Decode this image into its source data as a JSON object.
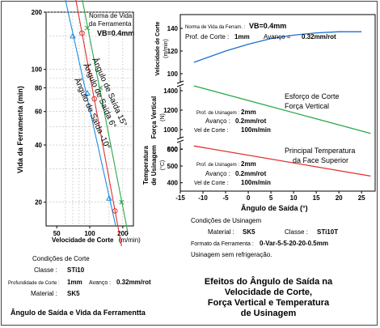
{
  "left_chart": {
    "ylabel": "Vida da Ferramenta (min)",
    "xlabel": "Velocidade de Corte",
    "xunit": "(m/min)",
    "yticks": [
      "200",
      "100",
      "80",
      "60",
      "40",
      "20"
    ],
    "xticks": [
      "50",
      "100",
      "200"
    ],
    "legend_title_1": "Norma de Vida",
    "legend_title_2": "da Ferramenta",
    "legend_vb": "VB=0.4mm",
    "cond_title": "Condições de Corte",
    "cond_class_label": "Classe :",
    "cond_class_value": "STi10",
    "cond_depth_label": "Profundidade de Corte :",
    "cond_depth_value": "1mm",
    "cond_feed_label": "Avanço :",
    "cond_feed_value": "0.32mm/rot",
    "cond_material_label": "Material :",
    "cond_material_value": "SK5",
    "caption": "Ângulo de Saída e Vida da Ferramentta"
  },
  "right_chart": {
    "xlabel": "Ângulo de Saída (°)",
    "xticks": [
      "-15",
      "-10",
      "-5",
      "0",
      "5",
      "10",
      "15",
      "20",
      "25"
    ],
    "panel1": {
      "ylabel_1": "Velocidade de Corte",
      "ylabel_2": "(m/min)",
      "yticks": [
        "140",
        "120",
        "100"
      ],
      "note_label": "Norma de Vida da Ferram. :",
      "note_vb": "VB=0.4mm",
      "depth_label": "Prof. de Corte :",
      "depth_value": "1mm",
      "feed_label": "Avanço =",
      "feed_value": "0.32mm/rot"
    },
    "panel2": {
      "ylabel_1": "Força Vertical",
      "ylabel_2": "(N)",
      "yticks": [
        "1400",
        "1200",
        "1000",
        "800"
      ],
      "series_1": "Esforço de Corte",
      "series_2": "Força Vertical",
      "depth_label": "Prof. de Usinagem :",
      "depth_value": "2mm",
      "feed_label": "Avanço :",
      "feed_value": "0.2mm/rot",
      "speed_label": "Vel de Corte :",
      "speed_value": "100m/min"
    },
    "panel3": {
      "ylabel_1": "Temperatura",
      "ylabel_2": "de Usinagem",
      "ylabel_3": "(°C)",
      "yticks": [
        "600",
        "500",
        "400"
      ],
      "series_1": "Principal Temperatura",
      "series_2": "da Face Superior",
      "depth_label": "Prof. de Usinagem :",
      "depth_value": "2mm",
      "feed_label": "Avanço :",
      "feed_value": "0.2mm/rot",
      "speed_label": "Vel de Corte :",
      "speed_value": "100m/min"
    },
    "cond_title": "Condições de Usinagem",
    "cond_material_label": "Material :",
    "cond_material_value": "SK5",
    "cond_class_label": "Classe :",
    "cond_class_value": "STi10T",
    "cond_format_label": "Formato da Ferramenta :",
    "cond_format_value": "0-Var-5-5-20-20-0.5mm",
    "cond_note": "Usinagem sem refrigeração.",
    "caption_1": "Efeitos do Ângulo de Saída na",
    "caption_2": "Velocidade de Corte,",
    "caption_3": "Força Vertical e Temperatura",
    "caption_4": "de Usinagem"
  },
  "chart_data": [
    {
      "type": "scatter",
      "xlabel": "Velocidade de Corte (m/min)",
      "ylabel": "Vida da Ferramenta (min)",
      "xscale": "log",
      "yscale": "log",
      "xlim": [
        40,
        250
      ],
      "ylim": [
        15,
        200
      ],
      "series": [
        {
          "name": "Ângulo de Saída -10°",
          "color": "#1a8fe0",
          "marker": "triangle",
          "x": [
            70,
            95,
            150
          ],
          "y": [
            150,
            75,
            21
          ]
        },
        {
          "name": "Ângulo de Saída 6°",
          "color": "#e23030",
          "marker": "circle",
          "x": [
            85,
            110,
            170
          ],
          "y": [
            155,
            70,
            18
          ]
        },
        {
          "name": "Ângulo de Saída 15°",
          "color": "#2aa84a",
          "marker": "x",
          "x": [
            95,
            125,
            195
          ],
          "y": [
            165,
            80,
            20
          ]
        }
      ]
    },
    {
      "type": "line",
      "xlabel": "Ângulo de Saída (°)",
      "ylabel": "Velocidade de Corte (m/min)",
      "xlim": [
        -15,
        28
      ],
      "ylim": [
        95,
        145
      ],
      "series": [
        {
          "color": "#1a6fd0",
          "x": [
            -12,
            -5,
            0,
            5,
            10,
            15,
            20,
            25
          ],
          "y": [
            110,
            120,
            126,
            131,
            134,
            136,
            137,
            137
          ]
        }
      ]
    },
    {
      "type": "line",
      "xlabel": "Ângulo de Saída (°)",
      "ylabel": "Força Vertical (N)",
      "xlim": [
        -15,
        28
      ],
      "ylim": [
        900,
        1500
      ],
      "series": [
        {
          "name": "Esforço de Corte / Força Vertical",
          "color": "#2aa84a",
          "x": [
            -12,
            27
          ],
          "y": [
            1450,
            960
          ]
        }
      ]
    },
    {
      "type": "line",
      "xlabel": "Ângulo de Saída (°)",
      "ylabel": "Temperatura de Usinagem (°C)",
      "xlim": [
        -15,
        28
      ],
      "ylim": [
        350,
        650
      ],
      "series": [
        {
          "name": "Principal Temperatura da Face Superior",
          "color": "#e23030",
          "x": [
            -12,
            27
          ],
          "y": [
            620,
            440
          ]
        }
      ]
    }
  ]
}
